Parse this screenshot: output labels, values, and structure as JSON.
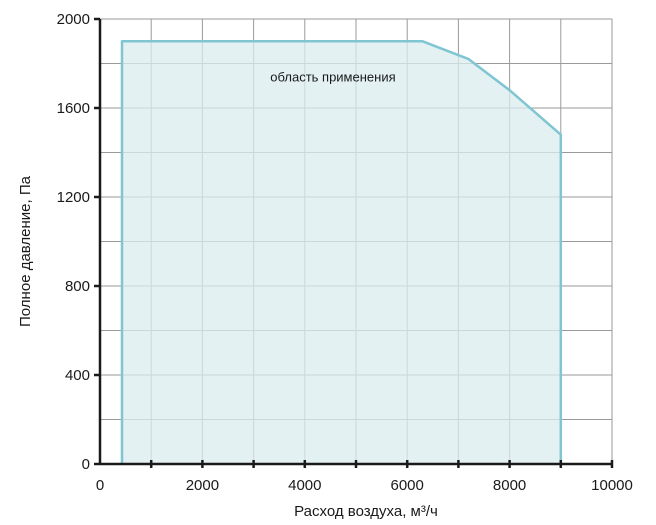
{
  "chart_data": {
    "type": "area",
    "xlabel": "Расход воздуха, м³/ч",
    "ylabel": "Полное давление, Па",
    "xlim": [
      0,
      10000
    ],
    "ylim": [
      0,
      2000
    ],
    "x_ticks": [
      "0",
      "2000",
      "4000",
      "6000",
      "8000",
      "10000"
    ],
    "y_ticks": [
      "0",
      "400",
      "800",
      "1200",
      "1600",
      "2000"
    ],
    "x_tick_values": [
      0,
      2000,
      4000,
      6000,
      8000,
      10000
    ],
    "y_tick_values": [
      0,
      400,
      800,
      1200,
      1600,
      2000
    ],
    "x_minor_gridlines": [
      1000,
      3000,
      5000,
      7000,
      9000
    ],
    "y_minor_gridlines": [
      200,
      600,
      1000,
      1400,
      1800
    ],
    "grid": true,
    "series": [
      {
        "x": [
          430,
          430,
          6300,
          7200,
          8000,
          9000,
          9000
        ],
        "y": [
          0,
          1900,
          1900,
          1820,
          1680,
          1480,
          0
        ]
      }
    ],
    "annotation": "область применения",
    "annotation_x": 4550,
    "annotation_y": 1720,
    "colors": {
      "fill": "#d9ecef",
      "line": "#7fc6d2",
      "grid": "#9a9a9a",
      "axis": "#1a1a1a"
    }
  }
}
